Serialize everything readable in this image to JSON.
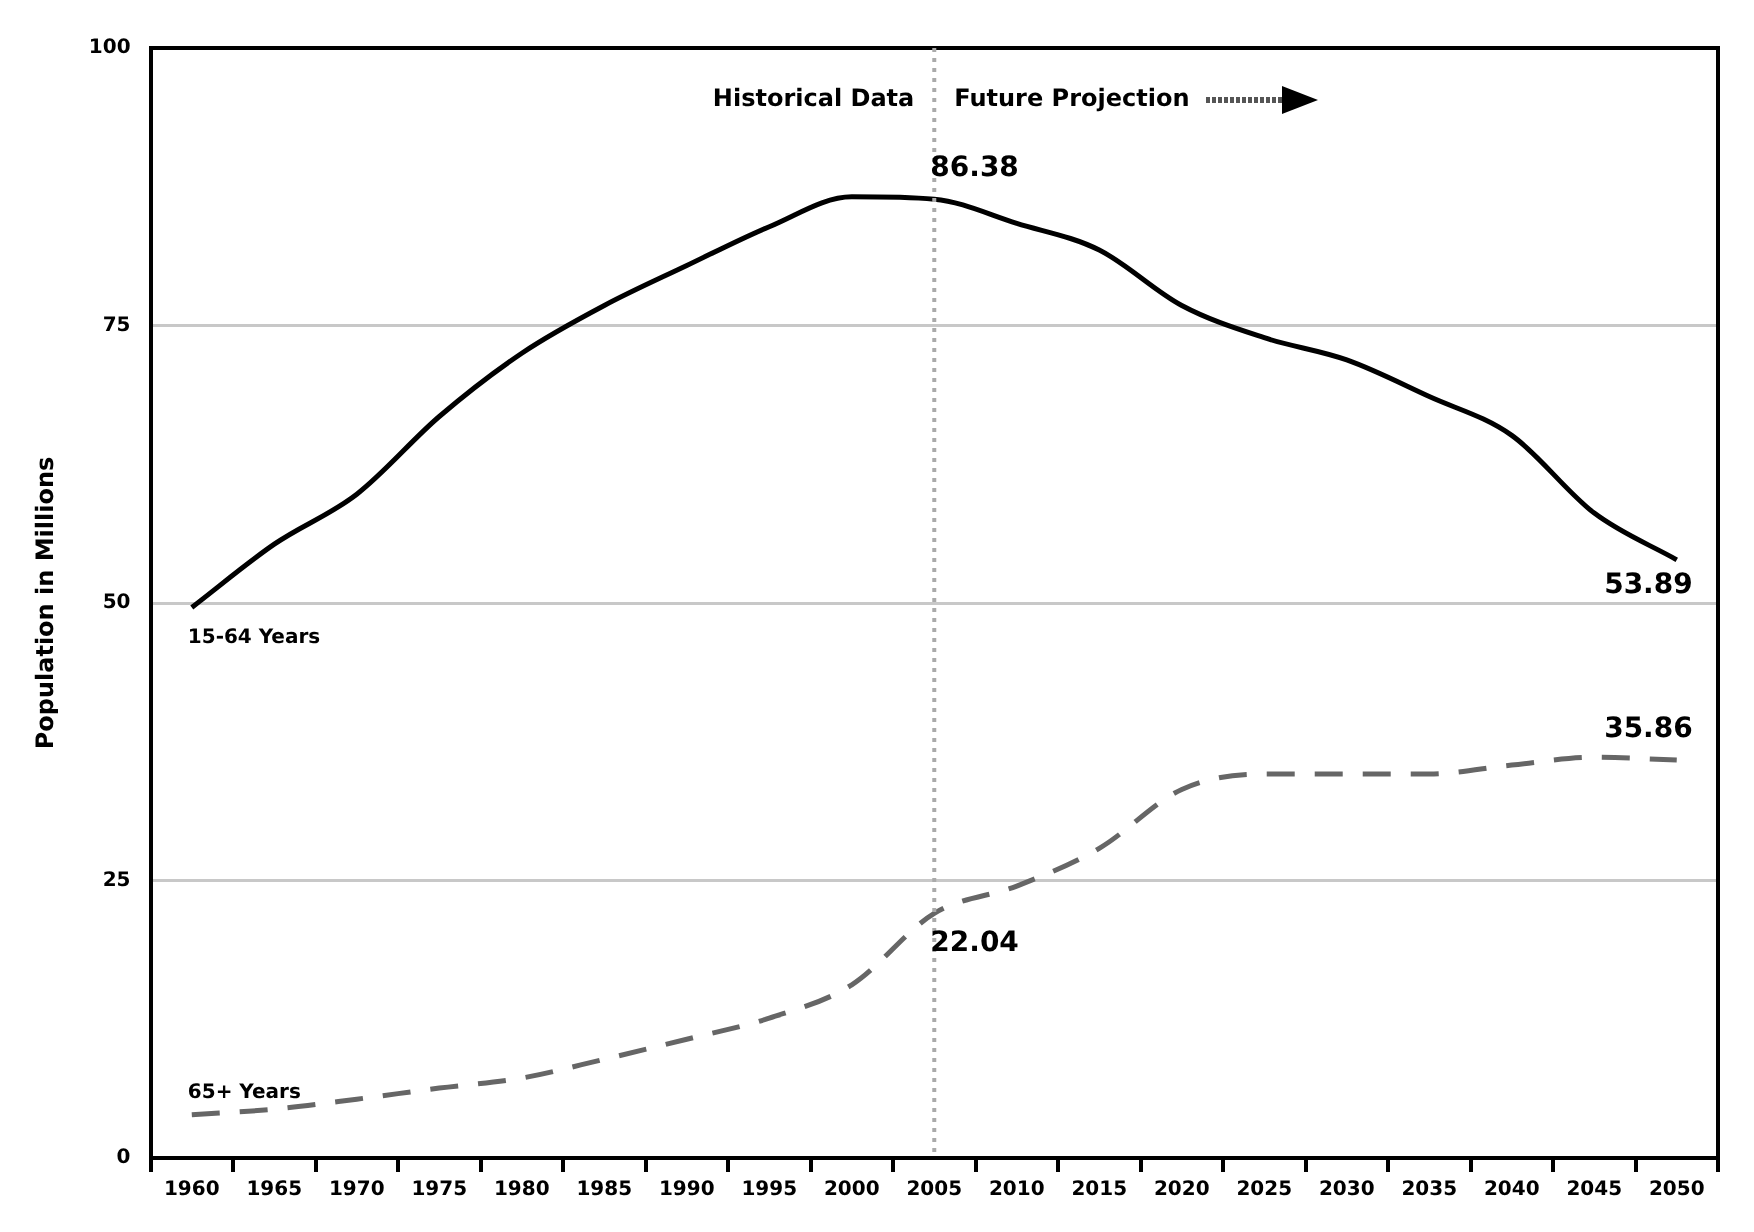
{
  "chart_data": {
    "type": "line",
    "ylabel": "Population in Millions",
    "categories": [
      "1960",
      "1965",
      "1970",
      "1975",
      "1980",
      "1985",
      "1990",
      "1995",
      "2000",
      "2005",
      "2010",
      "2015",
      "2020",
      "2025",
      "2030",
      "2035",
      "2040",
      "2045",
      "2050"
    ],
    "series": [
      {
        "name": "15-64 Years",
        "color": "#000000",
        "line_style": "solid",
        "values": [
          49.6,
          55.3,
          59.8,
          66.8,
          72.5,
          76.8,
          80.4,
          83.9,
          86.6,
          86.38,
          84.2,
          81.8,
          76.8,
          73.9,
          71.9,
          68.6,
          65.1,
          58.1,
          53.89
        ],
        "value_labels": [
          null,
          null,
          null,
          null,
          null,
          null,
          null,
          null,
          null,
          "86.38",
          null,
          null,
          null,
          null,
          null,
          null,
          null,
          null,
          "53.89"
        ]
      },
      {
        "name": "65+ Years",
        "color": "#666666",
        "line_style": "dashed",
        "values": [
          3.9,
          4.4,
          5.3,
          6.3,
          7.2,
          8.9,
          10.7,
          12.6,
          15.6,
          22.04,
          24.5,
          27.9,
          33.2,
          34.6,
          34.6,
          34.6,
          35.4,
          36.1,
          35.86
        ],
        "value_labels": [
          null,
          null,
          null,
          null,
          null,
          null,
          null,
          null,
          null,
          "22.04",
          null,
          null,
          null,
          null,
          null,
          null,
          null,
          null,
          "35.86"
        ]
      }
    ],
    "ylim": [
      0,
      100
    ],
    "yticks": [
      0,
      25,
      50,
      75,
      100
    ],
    "grid": "y",
    "legend": false,
    "marker": "none",
    "ref_lines": [
      {
        "axis": "x",
        "value": "2005",
        "color": "#aaaaaa",
        "line_style": "dotted"
      }
    ],
    "annotations": [
      "Historical Data",
      "Future Projection"
    ]
  }
}
